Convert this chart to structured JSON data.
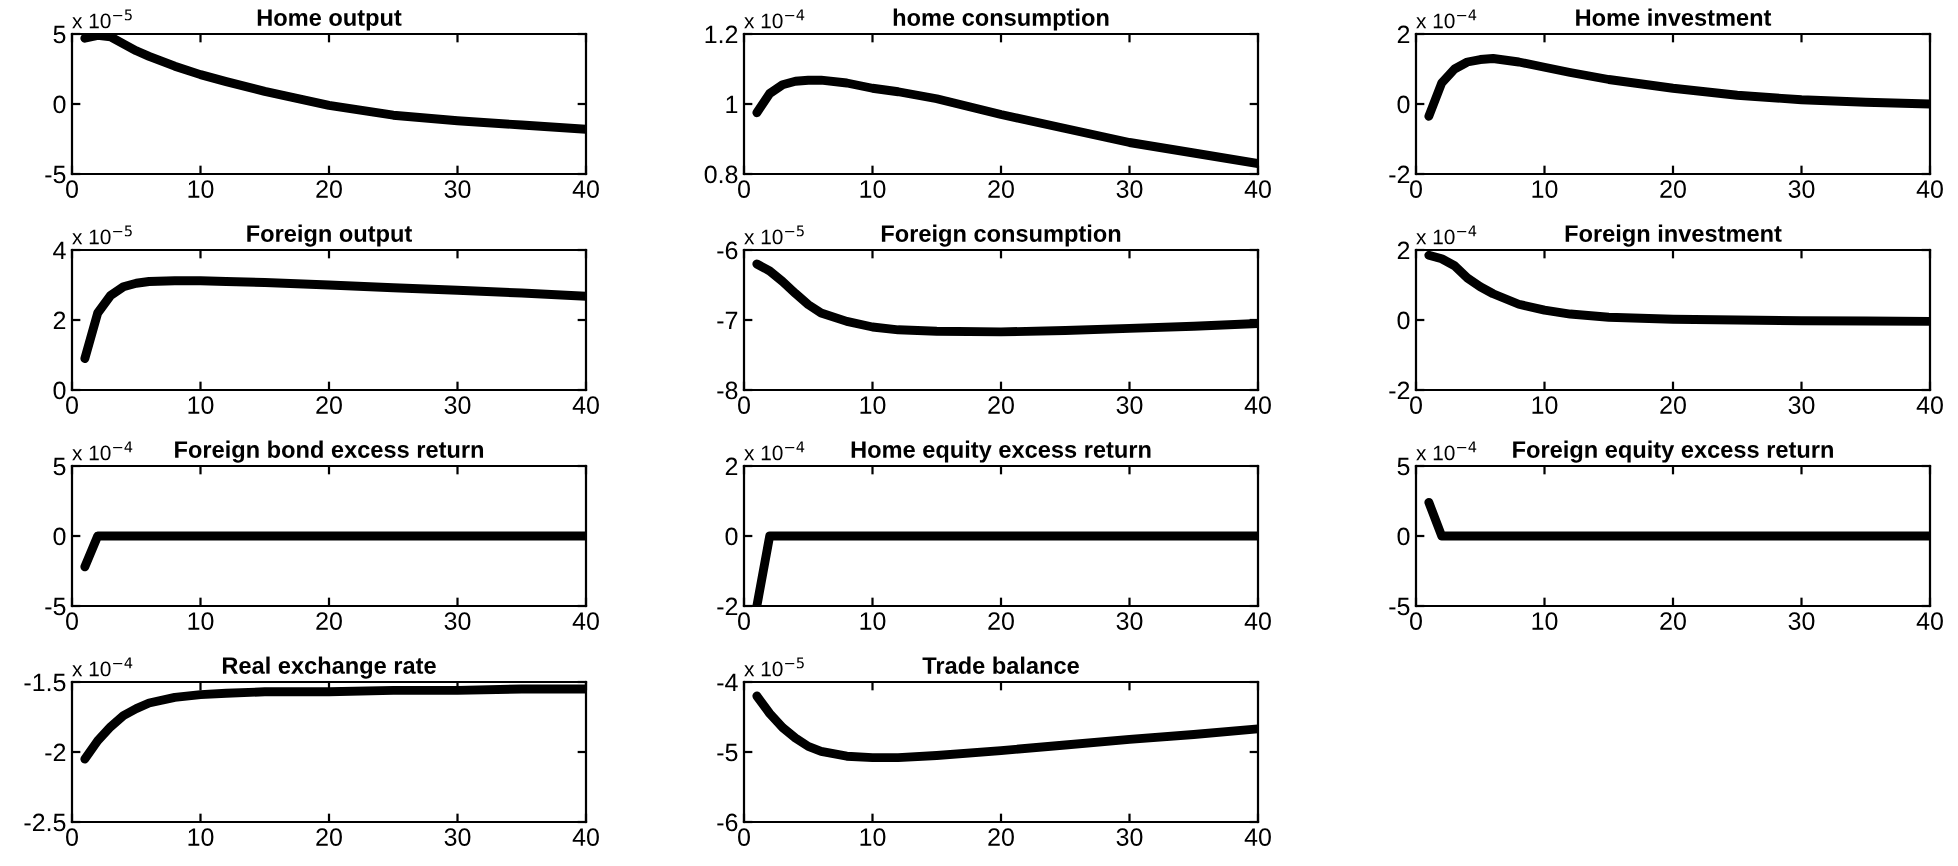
{
  "chart_data": [
    {
      "type": "line",
      "title": "Home output",
      "annotations": [
        "x 10$^{−5}$"
      ],
      "x": [
        1,
        2,
        3,
        4,
        5,
        6,
        8,
        10,
        12,
        15,
        20,
        25,
        30,
        35,
        40
      ],
      "series": [
        {
          "color": "#000000",
          "values": [
            4.7,
            4.9,
            4.8,
            4.3,
            3.8,
            3.4,
            2.7,
            2.1,
            1.6,
            0.9,
            -0.1,
            -0.8,
            -1.2,
            -1.5,
            -1.8
          ]
        }
      ],
      "xlim": [
        0,
        40
      ],
      "ylim": [
        -5,
        5
      ],
      "xticks": [
        0,
        10,
        20,
        30,
        40
      ],
      "yticks": [
        -5,
        0,
        5
      ]
    },
    {
      "type": "line",
      "title": "home consumption",
      "annotations": [
        "x 10$^{−4}$"
      ],
      "x": [
        1,
        2,
        3,
        4,
        5,
        6,
        8,
        10,
        12,
        15,
        20,
        25,
        30,
        35,
        40
      ],
      "series": [
        {
          "color": "#000000",
          "values": [
            0.975,
            1.03,
            1.055,
            1.065,
            1.068,
            1.068,
            1.06,
            1.045,
            1.035,
            1.015,
            0.97,
            0.93,
            0.89,
            0.86,
            0.83
          ]
        }
      ],
      "xlim": [
        0,
        40
      ],
      "ylim": [
        0.8,
        1.2
      ],
      "xticks": [
        0,
        10,
        20,
        30,
        40
      ],
      "yticks": [
        0.8,
        1,
        1.2
      ]
    },
    {
      "type": "line",
      "title": "Home investment",
      "annotations": [
        "x 10$^{−4}$"
      ],
      "x": [
        1,
        2,
        3,
        4,
        5,
        6,
        8,
        10,
        12,
        15,
        20,
        25,
        30,
        35,
        40
      ],
      "series": [
        {
          "color": "#000000",
          "values": [
            -0.35,
            0.6,
            1.0,
            1.2,
            1.27,
            1.3,
            1.2,
            1.05,
            0.9,
            0.7,
            0.45,
            0.25,
            0.12,
            0.05,
            0.0
          ]
        }
      ],
      "xlim": [
        0,
        40
      ],
      "ylim": [
        -2,
        2
      ],
      "xticks": [
        0,
        10,
        20,
        30,
        40
      ],
      "yticks": [
        -2,
        0,
        2
      ]
    },
    {
      "type": "line",
      "title": "Foreign output",
      "annotations": [
        "x 10$^{−5}$"
      ],
      "x": [
        1,
        2,
        3,
        4,
        5,
        6,
        8,
        10,
        12,
        15,
        20,
        25,
        30,
        35,
        40
      ],
      "series": [
        {
          "color": "#000000",
          "values": [
            0.9,
            2.2,
            2.7,
            2.95,
            3.05,
            3.1,
            3.12,
            3.12,
            3.1,
            3.07,
            3.0,
            2.92,
            2.85,
            2.77,
            2.68
          ]
        }
      ],
      "xlim": [
        0,
        40
      ],
      "ylim": [
        0,
        4
      ],
      "xticks": [
        0,
        10,
        20,
        30,
        40
      ],
      "yticks": [
        0,
        2,
        4
      ]
    },
    {
      "type": "line",
      "title": "Foreign consumption",
      "annotations": [
        "x 10$^{−5}$"
      ],
      "x": [
        1,
        2,
        3,
        4,
        5,
        6,
        8,
        10,
        12,
        15,
        20,
        25,
        30,
        35,
        40
      ],
      "series": [
        {
          "color": "#000000",
          "values": [
            -6.2,
            -6.3,
            -6.45,
            -6.62,
            -6.78,
            -6.9,
            -7.02,
            -7.1,
            -7.14,
            -7.16,
            -7.17,
            -7.15,
            -7.12,
            -7.09,
            -7.05
          ]
        }
      ],
      "xlim": [
        0,
        40
      ],
      "ylim": [
        -8,
        -6
      ],
      "xticks": [
        0,
        10,
        20,
        30,
        40
      ],
      "yticks": [
        -8,
        -7,
        -6
      ]
    },
    {
      "type": "line",
      "title": "Foreign investment",
      "annotations": [
        "x 10$^{−4}$"
      ],
      "x": [
        1,
        2,
        3,
        4,
        5,
        6,
        8,
        10,
        12,
        15,
        20,
        25,
        30,
        35,
        40
      ],
      "series": [
        {
          "color": "#000000",
          "values": [
            1.85,
            1.75,
            1.55,
            1.2,
            0.95,
            0.75,
            0.45,
            0.28,
            0.17,
            0.08,
            0.02,
            0.0,
            -0.02,
            -0.03,
            -0.04
          ]
        }
      ],
      "xlim": [
        0,
        40
      ],
      "ylim": [
        -2,
        2
      ],
      "xticks": [
        0,
        10,
        20,
        30,
        40
      ],
      "yticks": [
        -2,
        0,
        2
      ]
    },
    {
      "type": "line",
      "title": "Foreign bond excess return",
      "annotations": [
        "x 10$^{−4}$"
      ],
      "x": [
        1,
        2,
        3,
        4,
        5,
        6,
        8,
        10,
        12,
        15,
        20,
        25,
        30,
        35,
        40
      ],
      "series": [
        {
          "color": "#000000",
          "values": [
            -2.2,
            0,
            0,
            0,
            0,
            0,
            0,
            0,
            0,
            0,
            0,
            0,
            0,
            0,
            0
          ]
        }
      ],
      "xlim": [
        0,
        40
      ],
      "ylim": [
        -5,
        5
      ],
      "xticks": [
        0,
        10,
        20,
        30,
        40
      ],
      "yticks": [
        -5,
        0,
        5
      ]
    },
    {
      "type": "line",
      "title": "Home equity excess return",
      "annotations": [
        "x 10$^{−4}$"
      ],
      "x": [
        1,
        2,
        3,
        4,
        5,
        6,
        8,
        10,
        12,
        15,
        20,
        25,
        30,
        35,
        40
      ],
      "series": [
        {
          "color": "#000000",
          "values": [
            -2,
            0,
            0,
            0,
            0,
            0,
            0,
            0,
            0,
            0,
            0,
            0,
            0,
            0,
            0
          ]
        }
      ],
      "xlim": [
        0,
        40
      ],
      "ylim": [
        -2,
        2
      ],
      "xticks": [
        0,
        10,
        20,
        30,
        40
      ],
      "yticks": [
        -2,
        0,
        2
      ]
    },
    {
      "type": "line",
      "title": "Foreign equity excess return",
      "annotations": [
        "x 10$^{−4}$"
      ],
      "x": [
        1,
        2,
        3,
        4,
        5,
        6,
        8,
        10,
        12,
        15,
        20,
        25,
        30,
        35,
        40
      ],
      "series": [
        {
          "color": "#000000",
          "values": [
            2.4,
            0,
            0,
            0,
            0,
            0,
            0,
            0,
            0,
            0,
            0,
            0,
            0,
            0,
            0
          ]
        }
      ],
      "xlim": [
        0,
        40
      ],
      "ylim": [
        -5,
        5
      ],
      "xticks": [
        0,
        10,
        20,
        30,
        40
      ],
      "yticks": [
        -5,
        0,
        5
      ]
    },
    {
      "type": "line",
      "title": "Real exchange rate",
      "annotations": [
        "x 10$^{−4}$"
      ],
      "x": [
        1,
        2,
        3,
        4,
        5,
        6,
        8,
        10,
        12,
        15,
        20,
        25,
        30,
        35,
        40
      ],
      "series": [
        {
          "color": "#000000",
          "values": [
            -2.05,
            -1.92,
            -1.82,
            -1.74,
            -1.69,
            -1.65,
            -1.61,
            -1.59,
            -1.58,
            -1.57,
            -1.57,
            -1.56,
            -1.56,
            -1.55,
            -1.55
          ]
        }
      ],
      "xlim": [
        0,
        40
      ],
      "ylim": [
        -2.5,
        -1.5
      ],
      "xticks": [
        0,
        10,
        20,
        30,
        40
      ],
      "yticks": [
        -2.5,
        -2,
        -1.5
      ]
    },
    {
      "type": "line",
      "title": "Trade balance",
      "annotations": [
        "x 10$^{−5}$"
      ],
      "x": [
        1,
        2,
        3,
        4,
        5,
        6,
        8,
        10,
        12,
        15,
        20,
        25,
        30,
        35,
        40
      ],
      "series": [
        {
          "color": "#000000",
          "values": [
            -4.2,
            -4.45,
            -4.65,
            -4.8,
            -4.92,
            -4.99,
            -5.06,
            -5.08,
            -5.08,
            -5.05,
            -4.98,
            -4.9,
            -4.82,
            -4.75,
            -4.67
          ]
        }
      ],
      "xlim": [
        0,
        40
      ],
      "ylim": [
        -6,
        -4
      ],
      "xticks": [
        0,
        10,
        20,
        30,
        40
      ],
      "yticks": [
        -6,
        -5,
        -4
      ]
    }
  ]
}
